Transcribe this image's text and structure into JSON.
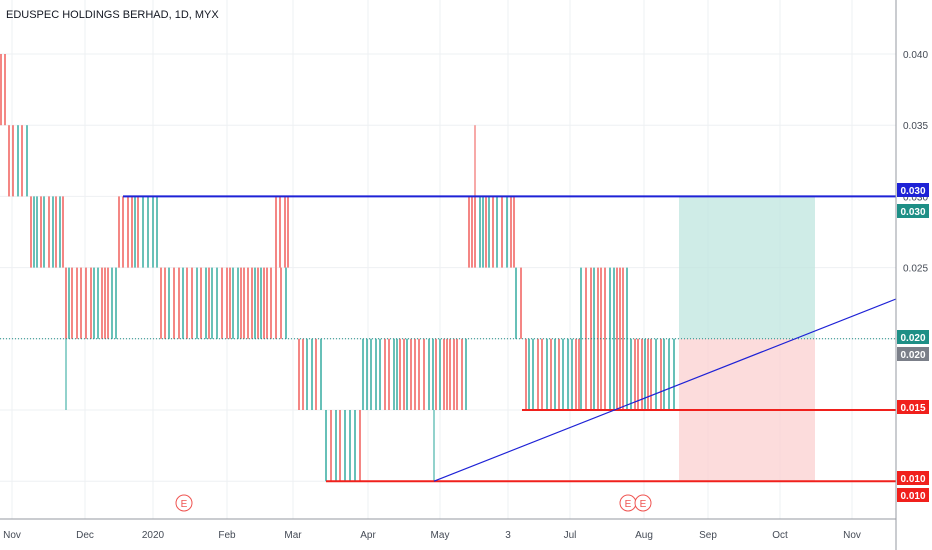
{
  "title": "EDUSPEC HOLDINGS BERHAD, 1D, MYX",
  "colors": {
    "up": "#26a69a",
    "down": "#ef5350",
    "blue_line": "#1e22d6",
    "red_line": "#f0201c",
    "grid": "#eef0f3",
    "axis_text": "#444a55",
    "profit_zone": "#bfe6df",
    "loss_zone": "#fbd3d3"
  },
  "chart_data": {
    "type": "candlestick",
    "x_tick_labels": [
      "Nov",
      "Dec",
      "2020",
      "Feb",
      "Mar",
      "Apr",
      "May",
      "3",
      "Jul",
      "Aug",
      "Sep",
      "Oct",
      "Nov"
    ],
    "y_tick_labels": [
      "0.040",
      "0.035",
      "0.030",
      "0.025",
      "0.020"
    ],
    "ylim": [
      0.006,
      0.044
    ],
    "price_tags": [
      {
        "label": "0.030",
        "value": 0.03,
        "color": "#1e22d6"
      },
      {
        "label": "0.030",
        "value": 0.03,
        "color": "#1e8f86"
      },
      {
        "label": "0.020",
        "value": 0.02,
        "color": "#1e8f86"
      },
      {
        "label": "0.020",
        "value": 0.02,
        "color": "#7b7f89"
      },
      {
        "label": "0.015",
        "value": 0.015,
        "color": "#f0201c"
      },
      {
        "label": "0.010",
        "value": 0.01,
        "color": "#f0201c"
      },
      {
        "label": "0.010",
        "value": 0.01,
        "color": "#f0201c"
      }
    ],
    "horizontal_lines": [
      {
        "value": 0.03,
        "from": "Dec",
        "color": "blue"
      },
      {
        "value": 0.015,
        "from": "Jun",
        "color": "red"
      },
      {
        "value": 0.01,
        "from": "Mar",
        "color": "red"
      }
    ],
    "trend_line": {
      "start_value": 0.01,
      "start": "late Apr",
      "direction": "up",
      "color": "blue"
    },
    "position": {
      "entry": 0.02,
      "target": 0.03,
      "stop": 0.01,
      "start": "mid Aug",
      "end": "mid Oct"
    },
    "dotted_line": 0.02,
    "events": [
      {
        "label": "E"
      },
      {
        "label": "E"
      },
      {
        "label": "E"
      }
    ]
  }
}
